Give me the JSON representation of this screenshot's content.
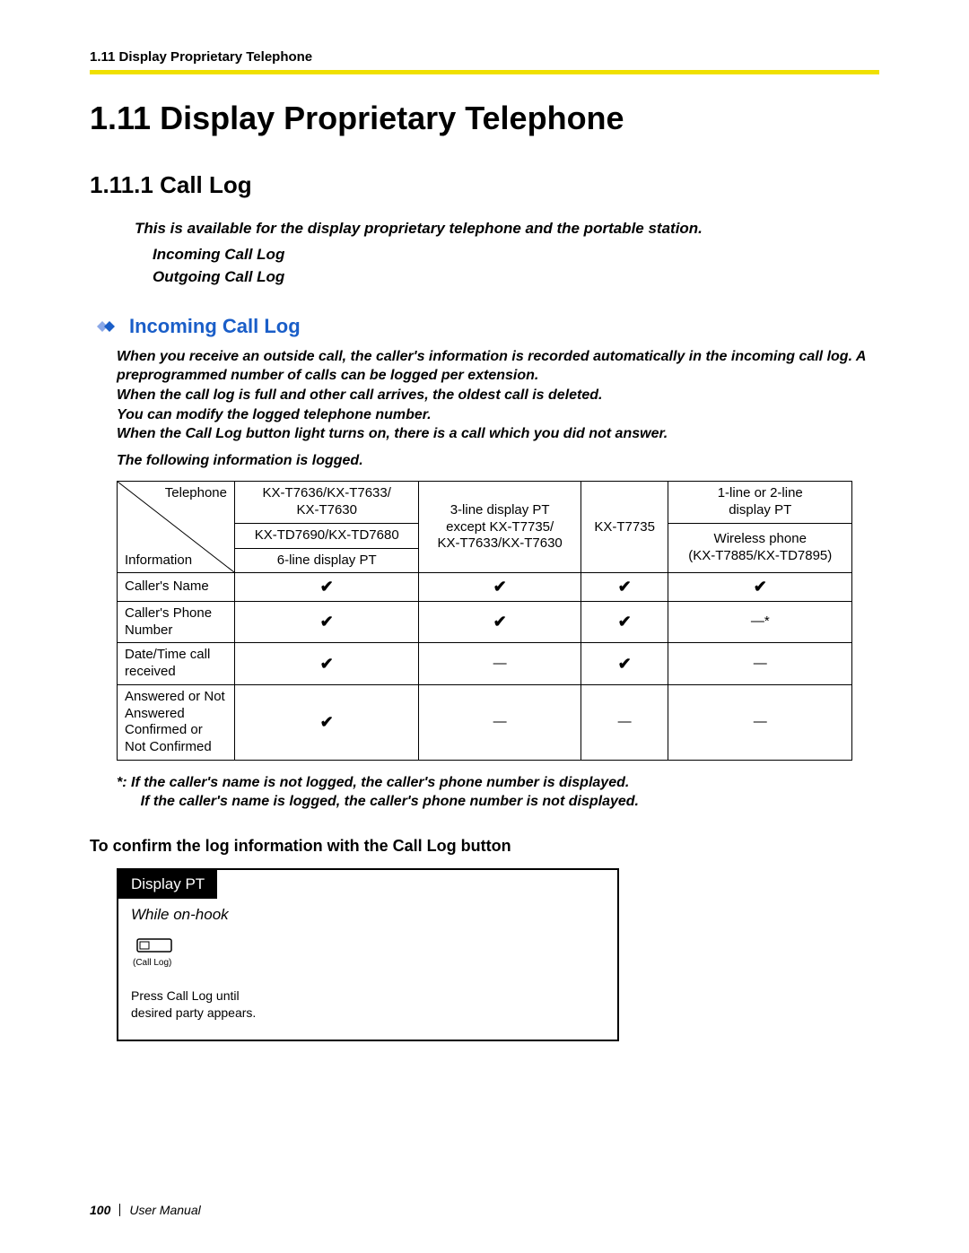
{
  "header": {
    "running_head": "1.11 Display Proprietary Telephone"
  },
  "rule_color": "#f0e000",
  "title": "1.11   Display Proprietary Telephone",
  "subtitle": "1.11.1   Call Log",
  "intro": {
    "line1": "This is available for the display proprietary telephone and the portable station.",
    "sub1": "Incoming Call Log",
    "sub2": "Outgoing Call Log"
  },
  "section": {
    "label": "Incoming Call Log",
    "color": "#1a5ec8",
    "paragraphs": [
      "When you receive an outside call, the caller's information is recorded automatically in the incoming call log. A preprogrammed number of calls can be logged per extension.",
      "When the call log is full and other call arrives, the oldest call is deleted.",
      "You can modify the logged telephone number.",
      "When the Call Log button light turns on, there is a call which you did not answer.",
      "The following information is logged."
    ]
  },
  "table": {
    "diag_top": "Telephone",
    "diag_bottom": "Information",
    "col1a": "KX-T7636/KX-T7633/",
    "col1b": "KX-T7630",
    "col1c": "KX-TD7690/KX-TD7680",
    "col1d": "6-line display PT",
    "col2a": "3-line display PT",
    "col2b": "except KX-T7735/",
    "col2c": "KX-T7633/KX-T7630",
    "col3": "KX-T7735",
    "col4a": "1-line or 2-line",
    "col4b": "display PT",
    "col4c": "Wireless phone",
    "col4d": "(KX-T7885/KX-TD7895)",
    "rows": [
      {
        "label": "Caller's Name",
        "c1": "✔",
        "c2": "✔",
        "c3": "✔",
        "c4": "✔"
      },
      {
        "label": "Caller's Phone Number",
        "c1": "✔",
        "c2": "✔",
        "c3": "✔",
        "c4": "—*"
      },
      {
        "label": "Date/Time call received",
        "c1": "✔",
        "c2": "—",
        "c3": "✔",
        "c4": "—"
      },
      {
        "label": "Answered or Not Answered\nConfirmed or Not Confirmed",
        "c1": "✔",
        "c2": "—",
        "c3": "—",
        "c4": "—"
      }
    ]
  },
  "footnote": {
    "line1": "*:   If the caller's name is not logged, the caller's phone number is displayed.",
    "line2": "      If the caller's name is logged, the caller's phone number is not displayed."
  },
  "procedure": {
    "heading": "To confirm the log information with the Call Log button",
    "tab": "Display PT",
    "state": "While on-hook",
    "button_label": "(Call Log)",
    "instruction_a": "Press Call Log   until",
    "instruction_b": "desired party   appears."
  },
  "footer": {
    "page": "100",
    "doc": "User Manual"
  }
}
